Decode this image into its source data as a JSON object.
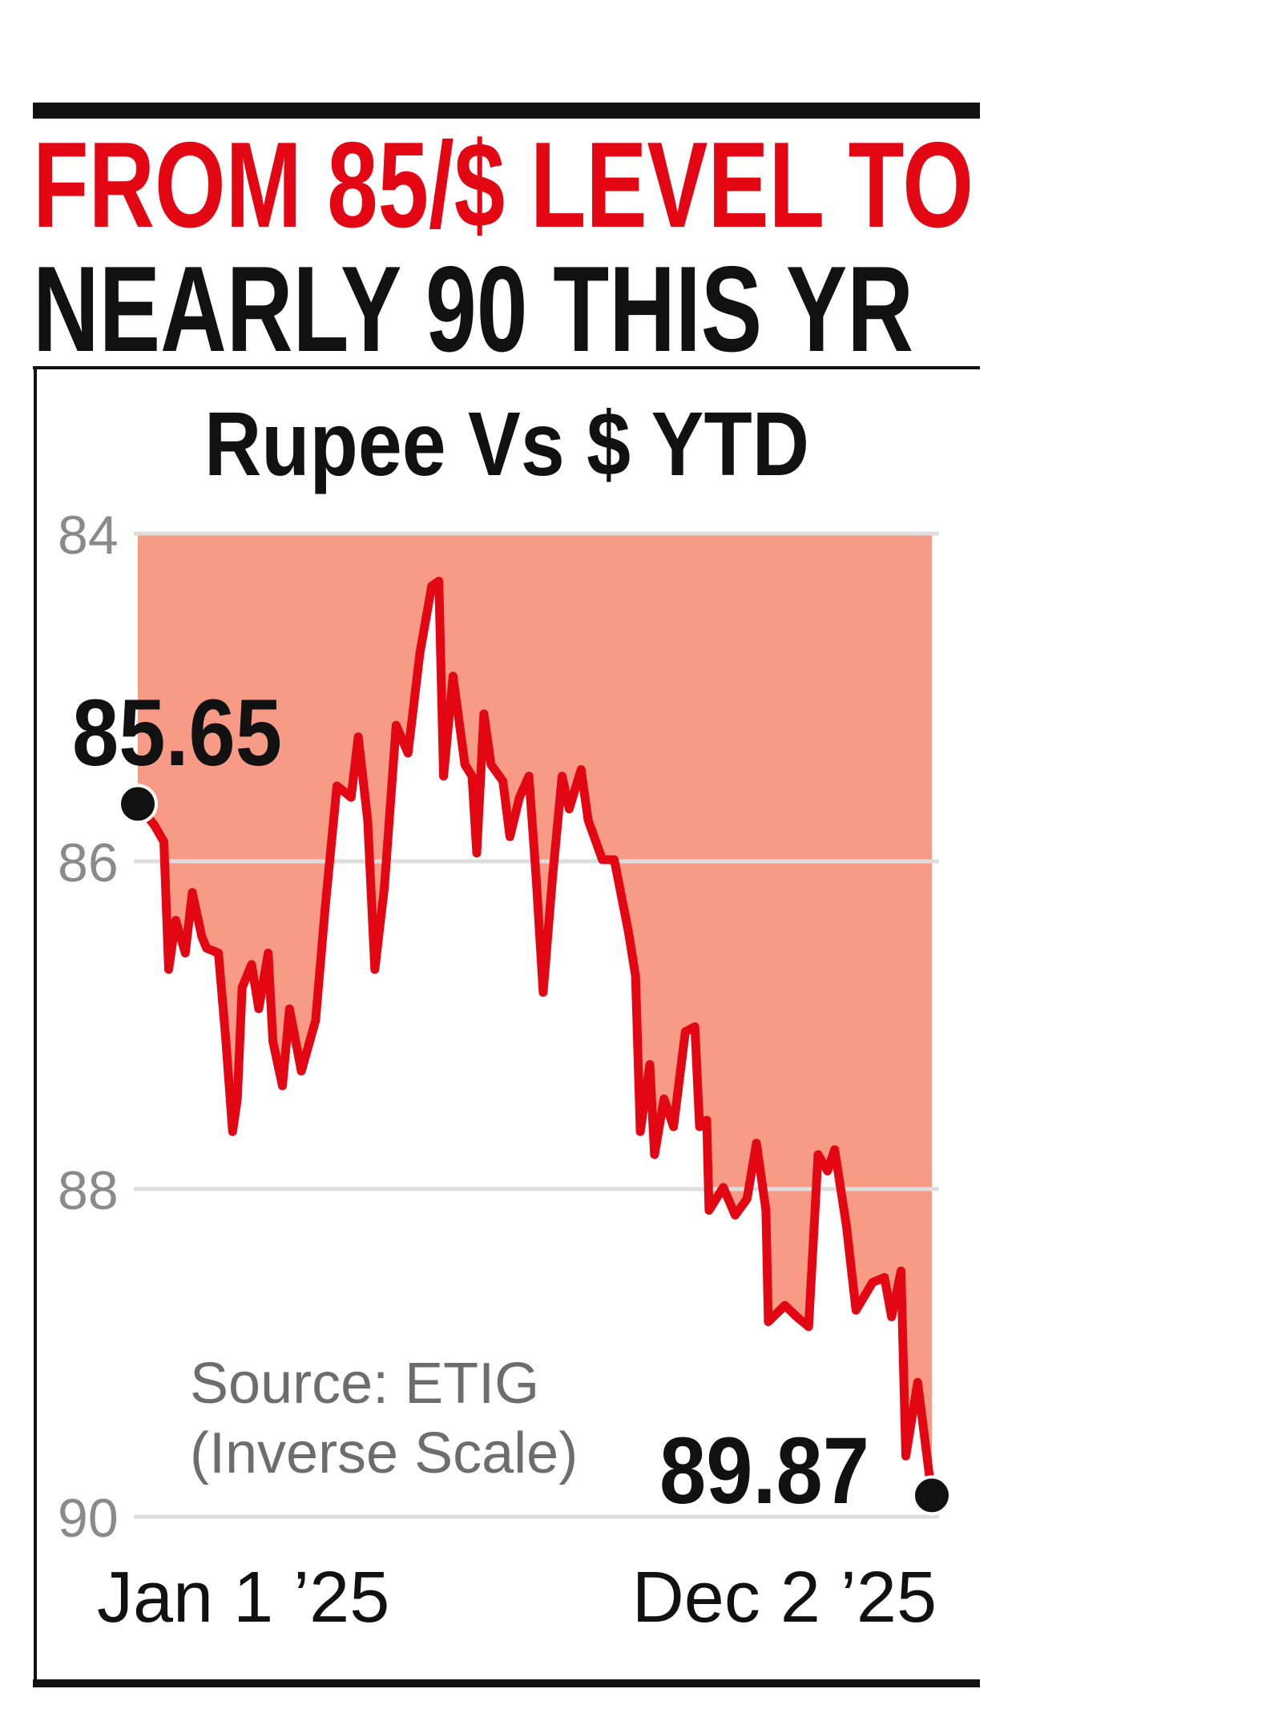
{
  "headline": {
    "line1": "FROM 85/$ LEVEL TO",
    "line2": "NEARLY 90 THIS YR",
    "line1_color": "#E30613",
    "line2_color": "#111111"
  },
  "chart_data": {
    "type": "area",
    "title": "Rupee Vs $ YTD",
    "source": "Source: ETIG",
    "note": "(Inverse Scale)",
    "y_axis": {
      "ticks": [
        "84",
        "86",
        "88",
        "90"
      ],
      "range": [
        84,
        90
      ],
      "inverted": true,
      "grid": true
    },
    "x_axis": {
      "tick_labels": [
        "Jan 1 ’25",
        "Dec 2 ’25"
      ],
      "range": [
        "2025-01-01",
        "2025-12-02"
      ]
    },
    "start_label": "85.65",
    "end_label": "89.87",
    "colors": {
      "line": "#E30613",
      "fill": "#F79B86",
      "grid": "#DDDDDD"
    },
    "series": [
      {
        "x": [
          "2025-01-01",
          "2025-01-08",
          "2025-01-12",
          "2025-01-14",
          "2025-01-17",
          "2025-01-21",
          "2025-01-24",
          "2025-01-28",
          "2025-01-30",
          "2025-02-04",
          "2025-02-07",
          "2025-02-10",
          "2025-02-12",
          "2025-02-14",
          "2025-02-18",
          "2025-02-21",
          "2025-02-25",
          "2025-02-27",
          "2025-03-03",
          "2025-03-06",
          "2025-03-11",
          "2025-03-17",
          "2025-03-21",
          "2025-03-26",
          "2025-04-01",
          "2025-04-04",
          "2025-04-08",
          "2025-04-11",
          "2025-04-15",
          "2025-04-20",
          "2025-04-25",
          "2025-04-30",
          "2025-05-05",
          "2025-05-08",
          "2025-05-10",
          "2025-05-14",
          "2025-05-19",
          "2025-05-22",
          "2025-05-24",
          "2025-05-27",
          "2025-05-30",
          "2025-06-04",
          "2025-06-07",
          "2025-06-11",
          "2025-06-15",
          "2025-06-18",
          "2025-06-21",
          "2025-06-25",
          "2025-06-29",
          "2025-07-02",
          "2025-07-07",
          "2025-07-10",
          "2025-07-16",
          "2025-07-21",
          "2025-07-27",
          "2025-07-30",
          "2025-08-01",
          "2025-08-05",
          "2025-08-07",
          "2025-08-11",
          "2025-08-15",
          "2025-08-20",
          "2025-08-24",
          "2025-08-26",
          "2025-08-29",
          "2025-08-30",
          "2025-09-05",
          "2025-09-10",
          "2025-09-15",
          "2025-09-19",
          "2025-09-23",
          "2025-09-24",
          "2025-10-01",
          "2025-10-06",
          "2025-10-11",
          "2025-10-15",
          "2025-10-19",
          "2025-10-22",
          "2025-10-27",
          "2025-10-31",
          "2025-11-07",
          "2025-11-12",
          "2025-11-15",
          "2025-11-19",
          "2025-11-21",
          "2025-11-26",
          "2025-12-02"
        ],
        "y": [
          85.65,
          85.78,
          85.88,
          86.66,
          86.36,
          86.56,
          86.19,
          86.46,
          86.53,
          86.56,
          87.07,
          87.65,
          87.45,
          86.77,
          86.63,
          86.9,
          86.56,
          87.1,
          87.37,
          86.9,
          87.28,
          86.97,
          86.29,
          85.54,
          85.61,
          85.24,
          85.75,
          86.66,
          86.16,
          85.17,
          85.34,
          84.73,
          84.32,
          84.29,
          85.48,
          84.87,
          85.41,
          85.48,
          85.95,
          85.1,
          85.41,
          85.51,
          85.85,
          85.61,
          85.48,
          86.09,
          86.8,
          86.09,
          85.48,
          85.68,
          85.44,
          85.75,
          85.99,
          85.99,
          86.43,
          86.7,
          87.65,
          87.24,
          87.79,
          87.45,
          87.62,
          87.04,
          87.01,
          87.62,
          87.58,
          88.13,
          87.99,
          88.16,
          88.06,
          87.72,
          88.13,
          88.81,
          88.71,
          88.78,
          88.84,
          87.79,
          87.89,
          87.76,
          88.23,
          88.74,
          88.57,
          88.54,
          88.78,
          88.5,
          89.63,
          89.18,
          89.87
        ]
      }
    ]
  }
}
